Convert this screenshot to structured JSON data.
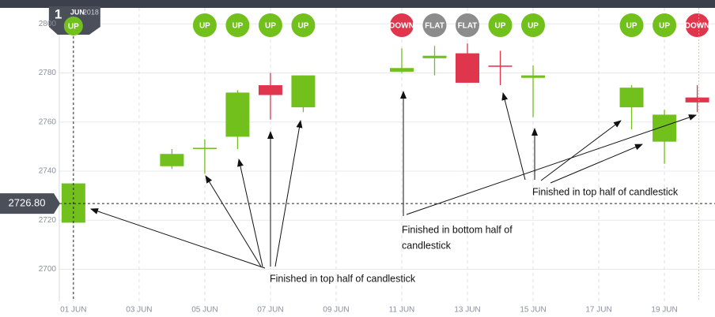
{
  "chart_data": {
    "type": "candlestick",
    "header": {
      "day": "1",
      "month": "JUN",
      "year": "2018",
      "badge": "UP"
    },
    "x": [
      1,
      4,
      5,
      6,
      7,
      8,
      11,
      12,
      13,
      14,
      15,
      18,
      19,
      20
    ],
    "series": [
      {
        "open": [
          2719,
          2742,
          2749,
          2754,
          2775,
          2766,
          2780.5,
          2786,
          2788,
          2783,
          2778,
          2766,
          2752,
          2770
        ],
        "high": [
          2735,
          2749,
          2753,
          2773,
          2780,
          2779,
          2790,
          2791,
          2792,
          2789,
          2783,
          2775,
          2765,
          2775
        ],
        "low": [
          2719,
          2741,
          2739,
          2749,
          2761,
          2764,
          2780,
          2779,
          2776,
          2775,
          2762,
          2757,
          2743,
          2764
        ],
        "close": [
          2735,
          2747,
          2749.5,
          2772,
          2771,
          2779,
          2782,
          2787,
          2776,
          2782.5,
          2779,
          2774,
          2763,
          2768
        ]
      }
    ],
    "badges": [
      null,
      null,
      "UP",
      "UP",
      "UP",
      "UP",
      "DOWN",
      "FLAT",
      "FLAT",
      "UP",
      "UP",
      "UP",
      "UP",
      "DOWN"
    ],
    "badge_colors": {
      "UP": "#72c01c",
      "DOWN": "#e0364d",
      "FLAT": "#8c8c8c"
    },
    "up_color": "#72c01c",
    "down_color": "#e0364d",
    "xlim": [
      0.57,
      20.54
    ],
    "xticks": [
      {
        "value": 1,
        "label": "01 JUN"
      },
      {
        "value": 3,
        "label": "03 JUN"
      },
      {
        "value": 5,
        "label": "05 JUN"
      },
      {
        "value": 7,
        "label": "07 JUN"
      },
      {
        "value": 9,
        "label": "09 JUN"
      },
      {
        "value": 11,
        "label": "11 JUN"
      },
      {
        "value": 13,
        "label": "13 JUN"
      },
      {
        "value": 15,
        "label": "15 JUN"
      },
      {
        "value": 17,
        "label": "17 JUN"
      },
      {
        "value": 19,
        "label": "19 JUN"
      }
    ],
    "ylim": [
      2687,
      2806.5
    ],
    "yticks": [
      2700,
      2720,
      2740,
      2760,
      2780,
      2800
    ],
    "current_price": {
      "value": 2726.8,
      "label": "2726.80"
    },
    "annotations": [
      "Finished in top half of candlestick",
      "Finished in bottom half of",
      "candlestick",
      "Finished in top half of candlestick"
    ],
    "grid": true
  }
}
